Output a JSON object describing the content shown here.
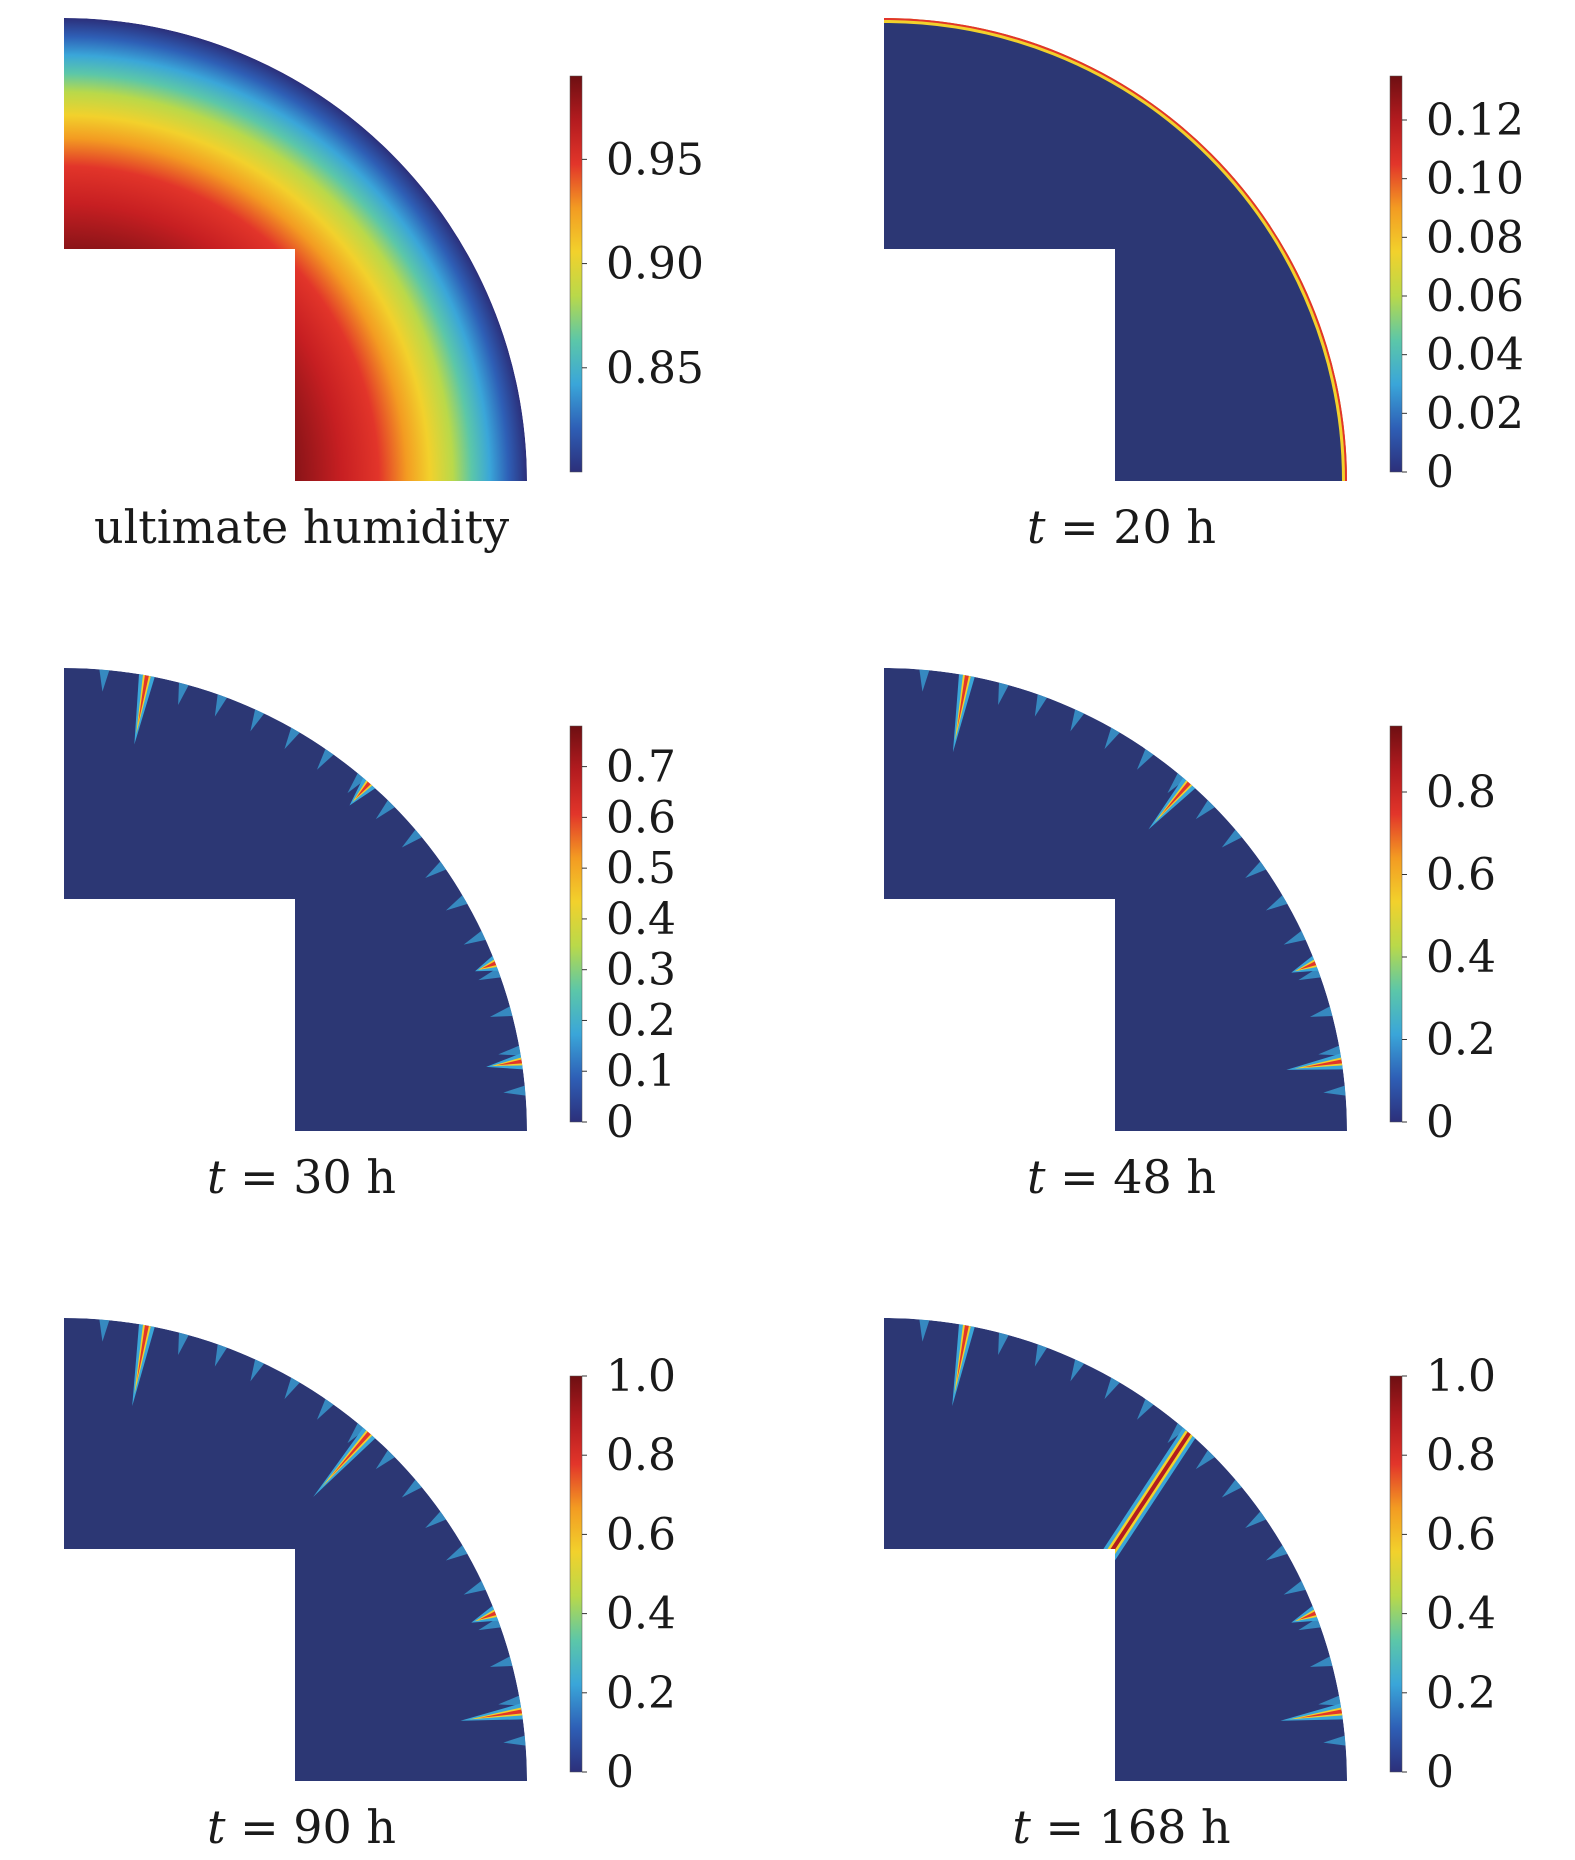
{
  "figure": {
    "panels": [
      {
        "id": "ultimate",
        "caption_var": "",
        "caption_text": "ultimate humidity",
        "field": "humidity",
        "colorbar": {
          "min": 0.8,
          "max": 0.99,
          "ticks": [
            {
              "value": 0.95,
              "label": "0.95"
            },
            {
              "value": 0.9,
              "label": "0.90"
            },
            {
              "value": 0.85,
              "label": "0.85"
            }
          ]
        }
      },
      {
        "id": "t20",
        "caption_var": "t",
        "caption_text": " = 20 h",
        "field": "edge",
        "colorbar": {
          "min": 0,
          "max": 0.135,
          "ticks": [
            {
              "value": 0.12,
              "label": "0.12"
            },
            {
              "value": 0.1,
              "label": "0.10"
            },
            {
              "value": 0.08,
              "label": "0.08"
            },
            {
              "value": 0.06,
              "label": "0.06"
            },
            {
              "value": 0.04,
              "label": "0.04"
            },
            {
              "value": 0.02,
              "label": "0.02"
            },
            {
              "value": 0,
              "label": "0"
            }
          ]
        }
      },
      {
        "id": "t30",
        "caption_var": "t",
        "caption_text": " = 30 h",
        "field": "cracks",
        "crack_level": 1,
        "colorbar": {
          "min": 0,
          "max": 0.78,
          "ticks": [
            {
              "value": 0.7,
              "label": "0.7"
            },
            {
              "value": 0.6,
              "label": "0.6"
            },
            {
              "value": 0.5,
              "label": "0.5"
            },
            {
              "value": 0.4,
              "label": "0.4"
            },
            {
              "value": 0.3,
              "label": "0.3"
            },
            {
              "value": 0.2,
              "label": "0.2"
            },
            {
              "value": 0.1,
              "label": "0.1"
            },
            {
              "value": 0,
              "label": "0"
            }
          ]
        }
      },
      {
        "id": "t48",
        "caption_var": "t",
        "caption_text": " = 48 h",
        "field": "cracks",
        "crack_level": 2,
        "colorbar": {
          "min": 0,
          "max": 0.96,
          "ticks": [
            {
              "value": 0.8,
              "label": "0.8"
            },
            {
              "value": 0.6,
              "label": "0.6"
            },
            {
              "value": 0.4,
              "label": "0.4"
            },
            {
              "value": 0.2,
              "label": "0.2"
            },
            {
              "value": 0,
              "label": "0"
            }
          ]
        }
      },
      {
        "id": "t90",
        "caption_var": "t",
        "caption_text": " = 90 h",
        "field": "cracks",
        "crack_level": 3,
        "colorbar": {
          "min": 0,
          "max": 1.0,
          "ticks": [
            {
              "value": 1.0,
              "label": "1.0"
            },
            {
              "value": 0.8,
              "label": "0.8"
            },
            {
              "value": 0.6,
              "label": "0.6"
            },
            {
              "value": 0.4,
              "label": "0.4"
            },
            {
              "value": 0.2,
              "label": "0.2"
            },
            {
              "value": 0,
              "label": "0"
            }
          ]
        }
      },
      {
        "id": "t168",
        "caption_var": "t",
        "caption_text": " = 168 h",
        "field": "cracks",
        "crack_level": 4,
        "colorbar": {
          "min": 0,
          "max": 1.0,
          "ticks": [
            {
              "value": 1.0,
              "label": "1.0"
            },
            {
              "value": 0.8,
              "label": "0.8"
            },
            {
              "value": 0.6,
              "label": "0.6"
            },
            {
              "value": 0.4,
              "label": "0.4"
            },
            {
              "value": 0.2,
              "label": "0.2"
            },
            {
              "value": 0,
              "label": "0"
            }
          ]
        }
      }
    ],
    "colors": {
      "background_field": "#2c3774",
      "colormap": [
        "#2c2f7a",
        "#2e5fb6",
        "#3aa6d9",
        "#5cc7a8",
        "#b9d94a",
        "#f2d12c",
        "#f39b22",
        "#e2352a",
        "#b31b1f",
        "#6e0f12"
      ]
    }
  }
}
